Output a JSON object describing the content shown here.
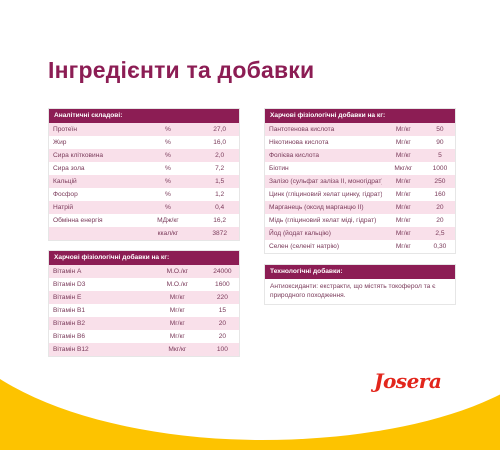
{
  "title": "Інгредієнти та добавки",
  "analytical": {
    "header": "Аналітичні складові:",
    "rows": [
      [
        "Протеїн",
        "%",
        "27,0"
      ],
      [
        "Жир",
        "%",
        "16,0"
      ],
      [
        "Сира клітковина",
        "%",
        "2,0"
      ],
      [
        "Сира зола",
        "%",
        "7,2"
      ],
      [
        "Кальцій",
        "%",
        "1,5"
      ],
      [
        "Фосфор",
        "%",
        "1,2"
      ],
      [
        "Натрій",
        "%",
        "0,4"
      ],
      [
        "Обмінна енергія",
        "МДж/кг",
        "16,2"
      ],
      [
        "",
        "ккал/кг",
        "3872"
      ]
    ]
  },
  "vitamins": {
    "header": "Харчові фізіологічні добавки на кг:",
    "rows": [
      [
        "Вітамін A",
        "М.О./кг",
        "24000"
      ],
      [
        "Вітамін D3",
        "М.О./кг",
        "1600"
      ],
      [
        "Вітамін E",
        "Мг/кг",
        "220"
      ],
      [
        "Вітамін B1",
        "Мг/кг",
        "15"
      ],
      [
        "Вітамін B2",
        "Мг/кг",
        "20"
      ],
      [
        "Вітамін B6",
        "Мг/кг",
        "20"
      ],
      [
        "Вітамін B12",
        "Мкг/кг",
        "100"
      ]
    ]
  },
  "additives": {
    "header": "Харчові фізіологічні добавки на кг:",
    "rows": [
      [
        "Пантотенова кислота",
        "Мг/кг",
        "50"
      ],
      [
        "Нікотинова кислота",
        "Мг/кг",
        "90"
      ],
      [
        "Фолієва кислота",
        "Мг/кг",
        "5"
      ],
      [
        "Біотин",
        "Мкг/кг",
        "1000"
      ],
      [
        "Залізо (сульфат заліза II, моногідрат)",
        "Мг/кг",
        "250"
      ],
      [
        "Цинк (гліциновий хелат цинку, гідрат)",
        "Мг/кг",
        "160"
      ],
      [
        "Марганець (оксид марганцю II)",
        "Мг/кг",
        "20"
      ],
      [
        "Мідь (гліциновий хелат міді, гідрат)",
        "Мг/кг",
        "20"
      ],
      [
        "Йод (йодат кальцію)",
        "Мг/кг",
        "2,5"
      ],
      [
        "Селен (селеніт натрію)",
        "Мг/кг",
        "0,30"
      ]
    ]
  },
  "technological": {
    "header": "Технологічні добавки:",
    "text": "Антиоксиданти: екстракти, що містять токоферол та є природного походження."
  },
  "logo": "Josera",
  "colors": {
    "brand": "#8c1d54",
    "row_alt": "#f9e0ea",
    "background": "#fdc300",
    "logo": "#e2261c"
  }
}
